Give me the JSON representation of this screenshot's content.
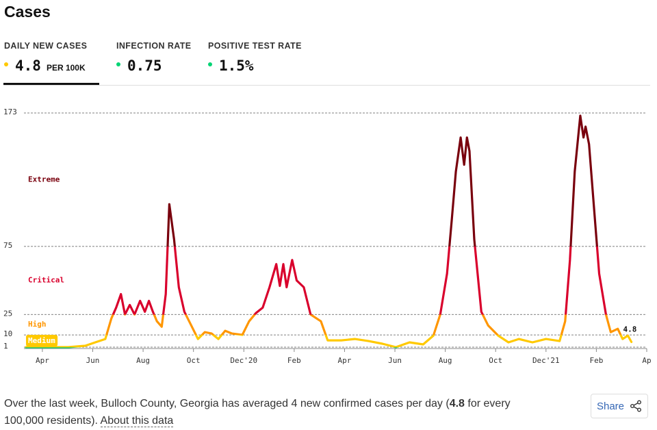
{
  "header": {
    "title": "Cases"
  },
  "tabs": [
    {
      "label": "DAILY NEW CASES",
      "value": "4.8",
      "unit": "PER 100K",
      "color": "#ffc900"
    },
    {
      "label": "INFECTION RATE",
      "value": "0.75",
      "color": "#00d474"
    },
    {
      "label": "POSITIVE TEST RATE",
      "value": "1.5%",
      "color": "#00d474"
    }
  ],
  "chart_data": {
    "type": "line",
    "x": [
      -0.65,
      0,
      1.03,
      1.7,
      2.1,
      2.5,
      2.74,
      2.93,
      3.12,
      3.28,
      3.47,
      3.66,
      3.88,
      4.07,
      4.23,
      4.39,
      4.55,
      4.74,
      4.9,
      5.04,
      5.23,
      5.42,
      5.64,
      5.91,
      6.18,
      6.45,
      6.72,
      6.99,
      7.26,
      7.53,
      7.94,
      8.21,
      8.48,
      8.75,
      9.02,
      9.29,
      9.43,
      9.57,
      9.7,
      9.92,
      10.1,
      10.38,
      10.65,
      11.06,
      11.33,
      11.87,
      12.41,
      12.95,
      13.5,
      14.04,
      14.58,
      15.12,
      15.53,
      15.8,
      16.07,
      16.26,
      16.42,
      16.61,
      16.75,
      16.86,
      16.96,
      17.15,
      17.43,
      17.7,
      18.1,
      18.51,
      18.92,
      19.46,
      20.0,
      20.54,
      20.76,
      20.95,
      21.14,
      21.36,
      21.49,
      21.57,
      21.71,
      21.9,
      22.11,
      22.38,
      22.57,
      22.85,
      23.04,
      23.25,
      23.39
    ],
    "values": [
      1,
      1,
      1,
      2,
      4.5,
      7,
      22,
      30,
      40,
      25,
      32,
      25,
      35,
      27,
      35,
      27,
      20,
      16,
      40,
      106,
      80,
      45,
      27,
      17,
      7,
      12,
      11,
      7,
      13,
      11,
      10,
      20,
      26,
      30,
      45,
      62,
      46,
      62,
      45,
      65,
      50,
      45,
      25,
      20,
      6,
      6,
      7,
      5.5,
      3.5,
      1,
      4.5,
      3,
      9.5,
      25,
      55,
      95,
      130,
      155,
      135,
      155,
      145,
      80,
      27,
      17,
      9.5,
      4.5,
      7,
      4.5,
      7,
      5.5,
      20,
      65,
      130,
      171,
      155,
      163,
      150,
      105,
      55,
      25,
      12,
      14.5,
      7,
      9.5,
      4.8
    ],
    "xlim": [
      -0.65,
      24
    ],
    "xticks": [
      {
        "value": 0,
        "label": "Apr"
      },
      {
        "value": 2,
        "label": "Jun"
      },
      {
        "value": 4,
        "label": "Aug"
      },
      {
        "value": 6,
        "label": "Oct"
      },
      {
        "value": 8,
        "label": "Dec'20"
      },
      {
        "value": 10,
        "label": "Feb"
      },
      {
        "value": 12,
        "label": "Apr"
      },
      {
        "value": 14,
        "label": "Jun"
      },
      {
        "value": 16,
        "label": "Aug"
      },
      {
        "value": 18,
        "label": "Oct"
      },
      {
        "value": 20,
        "label": "Dec'21"
      },
      {
        "value": 22,
        "label": "Feb"
      },
      {
        "value": 24,
        "label": "Ap"
      }
    ],
    "ylim": [
      1,
      173
    ],
    "yticks": [
      1,
      10,
      25,
      75,
      173
    ],
    "grid": true,
    "below_color": "#00d474",
    "levels": [
      {
        "label": "Medium",
        "min": 1,
        "max": 10,
        "color": "#ffc900"
      },
      {
        "label": "High",
        "min": 10,
        "max": 25,
        "color": "#ff9600"
      },
      {
        "label": "Critical",
        "min": 25,
        "max": 75,
        "color": "#d9002c"
      },
      {
        "label": "Extreme",
        "min": 75,
        "max": 173,
        "color": "#79000d"
      }
    ]
  },
  "summary": {
    "before": "Over the last week, Bulloch County, Georgia has averaged 4 new confirmed cases per day (",
    "bold": "4.8",
    "after": " for every 100,000 residents). ",
    "link": "About this data"
  },
  "share": "Share"
}
